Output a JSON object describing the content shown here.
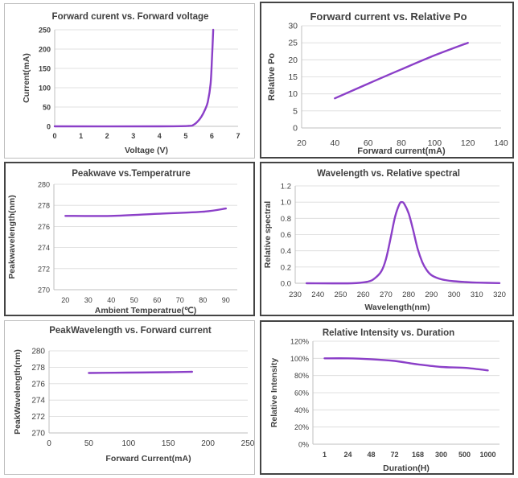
{
  "colors": {
    "line": "#8B3FC8",
    "axis": "#bfbfbf",
    "grid": "#d9d9d9",
    "text": "#404040"
  },
  "chart_data": [
    {
      "type": "line",
      "title": "Forward curent vs. Forward voltage",
      "xlabel": "Voltage  (V)",
      "ylabel": "Current(mA)",
      "xlim": [
        0,
        7
      ],
      "ylim": [
        0,
        250
      ],
      "xticks": [
        0,
        1,
        2,
        3,
        4,
        5,
        6,
        7
      ],
      "yticks": [
        0,
        50,
        100,
        150,
        200,
        250
      ],
      "x_tick_labels": [
        "0",
        "1",
        "2",
        "3",
        "4",
        "5",
        "6",
        "7"
      ],
      "y_tick_labels": [
        "0",
        "50",
        "100",
        "150",
        "200",
        "250"
      ],
      "grid": "horizontal",
      "series": [
        {
          "name": "Current",
          "x": [
            0,
            4,
            5.1,
            5.3,
            5.45,
            5.6,
            5.75,
            5.85,
            5.95,
            6.0,
            6.05
          ],
          "y": [
            0,
            0,
            1,
            4,
            12,
            25,
            45,
            65,
            110,
            170,
            250
          ]
        }
      ]
    },
    {
      "type": "line",
      "title": "Forward current vs. Relative Po",
      "xlabel": "Forward current(mA)",
      "ylabel": "Relative Po",
      "xlim": [
        20,
        140
      ],
      "ylim": [
        0,
        30
      ],
      "xticks": [
        20,
        40,
        60,
        80,
        100,
        120,
        140
      ],
      "yticks": [
        0,
        5,
        10,
        15,
        20,
        25,
        30
      ],
      "x_tick_labels": [
        "20",
        "40",
        "60",
        "80",
        "100",
        "120",
        "140"
      ],
      "y_tick_labels": [
        "0",
        "5",
        "10",
        "15",
        "20",
        "25",
        "30"
      ],
      "grid": "horizontal",
      "series": [
        {
          "name": "Relative Po",
          "x": [
            40,
            60,
            80,
            100,
            120
          ],
          "y": [
            8.7,
            13,
            17.2,
            21.3,
            25
          ]
        }
      ]
    },
    {
      "type": "line",
      "title": "Peakwave vs.Temperatrure",
      "xlabel": "Ambient Temperatrue(℃)",
      "ylabel": "Peakwavelength(nm)",
      "xlim": [
        15,
        95
      ],
      "ylim": [
        270,
        280
      ],
      "xticks": [
        20,
        30,
        40,
        50,
        60,
        70,
        80,
        90
      ],
      "yticks": [
        270,
        272,
        274,
        276,
        278,
        280
      ],
      "x_tick_labels": [
        "20",
        "30",
        "40",
        "50",
        "60",
        "70",
        "80",
        "90"
      ],
      "y_tick_labels": [
        "270",
        "272",
        "274",
        "276",
        "278",
        "280"
      ],
      "grid": "horizontal",
      "series": [
        {
          "name": "Peak wavelength",
          "x": [
            20,
            40,
            60,
            80,
            90
          ],
          "y": [
            277,
            277,
            277.2,
            277.4,
            277.7
          ]
        }
      ]
    },
    {
      "type": "line",
      "title": "Wavelength vs. Relative spectral",
      "xlabel": "Wavelength(nm)",
      "ylabel": "Relative spectral",
      "xlim": [
        230,
        320
      ],
      "ylim": [
        0,
        1.2
      ],
      "xticks": [
        230,
        240,
        250,
        260,
        270,
        280,
        290,
        300,
        310,
        320
      ],
      "yticks": [
        0,
        0.2,
        0.4,
        0.6,
        0.8,
        1.0,
        1.2
      ],
      "x_tick_labels": [
        "230",
        "240",
        "250",
        "260",
        "270",
        "280",
        "290",
        "300",
        "310",
        "320"
      ],
      "y_tick_labels": [
        "0.0",
        "0.2",
        "0.4",
        "0.6",
        "0.8",
        "1.0",
        "1.2"
      ],
      "grid": "horizontal",
      "series": [
        {
          "name": "Relative spectral",
          "x": [
            235,
            255,
            262,
            265,
            268,
            270,
            272,
            274,
            276,
            277,
            278,
            280,
            282,
            284,
            286,
            288,
            290,
            293,
            296,
            300,
            305,
            310,
            320
          ],
          "y": [
            0,
            0,
            0.02,
            0.06,
            0.15,
            0.3,
            0.55,
            0.82,
            0.98,
            1.0,
            0.98,
            0.86,
            0.65,
            0.42,
            0.26,
            0.16,
            0.1,
            0.06,
            0.04,
            0.025,
            0.015,
            0.008,
            0.002
          ]
        }
      ]
    },
    {
      "type": "line",
      "title": "PeakWavelength vs. Forward current",
      "xlabel": "Forward Current(mA)",
      "ylabel": "PeakWavelength(nm)",
      "xlim": [
        0,
        250
      ],
      "ylim": [
        270,
        280
      ],
      "xticks": [
        0,
        50,
        100,
        150,
        200,
        250
      ],
      "yticks": [
        270,
        272,
        274,
        276,
        278,
        280
      ],
      "x_tick_labels": [
        "0",
        "50",
        "100",
        "150",
        "200",
        "250"
      ],
      "y_tick_labels": [
        "270",
        "272",
        "274",
        "276",
        "278",
        "280"
      ],
      "grid": "horizontal",
      "series": [
        {
          "name": "Peak wavelength",
          "x": [
            50,
            100,
            150,
            180
          ],
          "y": [
            277.3,
            277.35,
            277.4,
            277.45
          ]
        }
      ]
    },
    {
      "type": "line",
      "title": "Relative Intensity vs. Duration",
      "xlabel": "Duration(H)",
      "ylabel": "Relative Intensity",
      "categories": [
        "1",
        "24",
        "48",
        "72",
        "168",
        "300",
        "500",
        "1000"
      ],
      "ylim": [
        0,
        120
      ],
      "yticks": [
        0,
        20,
        40,
        60,
        80,
        100,
        120
      ],
      "y_tick_labels": [
        "0%",
        "20%",
        "40%",
        "60%",
        "80%",
        "100%",
        "120%"
      ],
      "grid": "horizontal",
      "series": [
        {
          "name": "Relative Intensity",
          "values": [
            100,
            100,
            99,
            97,
            93,
            90,
            89,
            86
          ]
        }
      ]
    }
  ]
}
